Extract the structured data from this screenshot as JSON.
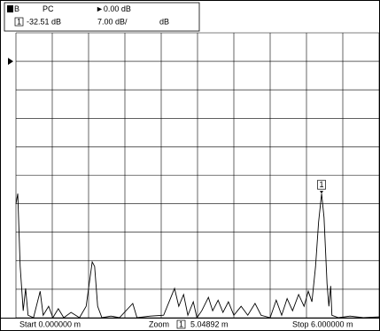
{
  "chart_data": {
    "type": "line",
    "channel": "B",
    "format": "PC",
    "reference": {
      "value": 0,
      "label": "►0.00 dB"
    },
    "scale": {
      "value": 7,
      "label": "7.00 dB/"
    },
    "unit": "dB",
    "marker": {
      "label": "1",
      "x": 5.04892,
      "y": -32.51,
      "x_label": "5.04892 m",
      "y_label": "-32.51 dB"
    },
    "zoom_label": "Zoom",
    "start_label": "Start 0.000000 m",
    "stop_label": "Stop 6.000000 m",
    "xlim": [
      0,
      6
    ],
    "ylim": [
      -63,
      7
    ],
    "grid": true,
    "color": "#000000",
    "x": [
      0.0,
      0.03,
      0.07,
      0.12,
      0.16,
      0.2,
      0.29,
      0.4,
      0.45,
      0.54,
      0.61,
      0.7,
      0.79,
      0.91,
      1.05,
      1.16,
      1.21,
      1.26,
      1.3,
      1.35,
      1.42,
      1.57,
      1.71,
      1.93,
      2.0,
      2.22,
      2.44,
      2.56,
      2.62,
      2.69,
      2.77,
      2.84,
      2.93,
      2.99,
      3.07,
      3.18,
      3.25,
      3.34,
      3.42,
      3.51,
      3.6,
      3.72,
      3.83,
      3.95,
      4.05,
      4.2,
      4.3,
      4.39,
      4.48,
      4.57,
      4.67,
      4.76,
      4.83,
      4.89,
      4.95,
      5.0,
      5.05,
      5.09,
      5.14,
      5.17,
      5.2,
      5.22,
      5.33,
      5.52,
      5.74,
      6.0
    ],
    "values": [
      -35.1,
      -32.5,
      -50.4,
      -61.3,
      -55.8,
      -62.4,
      -63,
      -56.5,
      -62.4,
      -60.2,
      -63,
      -60.8,
      -63,
      -61.7,
      -63,
      -60.2,
      -54.7,
      -49.3,
      -50.4,
      -60.2,
      -63,
      -62.6,
      -63,
      -59.5,
      -63,
      -62.6,
      -62.4,
      -58,
      -55.8,
      -60.2,
      -57.3,
      -62.4,
      -59.1,
      -63,
      -61.3,
      -58,
      -61.3,
      -58.7,
      -61.7,
      -59.1,
      -62.4,
      -60.2,
      -62.4,
      -59.5,
      -62.4,
      -63,
      -58.7,
      -62.4,
      -58.3,
      -61.3,
      -57.3,
      -60.2,
      -56.5,
      -59.1,
      -50.4,
      -39.5,
      -32.5,
      -38.4,
      -54.7,
      -60.2,
      -55.2,
      -62.4,
      -63,
      -62.6,
      -63,
      -62.8
    ]
  }
}
